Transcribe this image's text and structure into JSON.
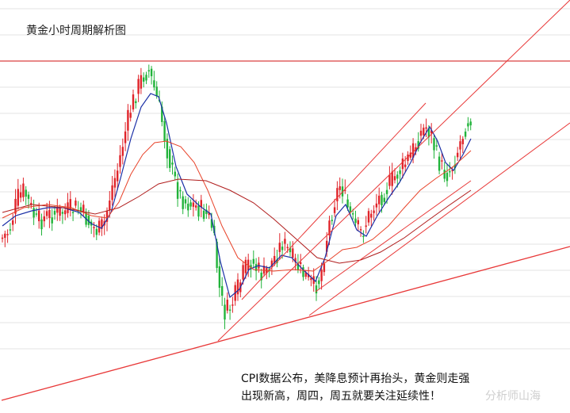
{
  "chart_data": {
    "type": "candlestick",
    "title": "黄金小时周期解析图",
    "caption_line1": "CPI数据公布，美降息预计再抬头，黄金则走强",
    "caption_line2": "出现新高，周四，周五就要关注延续性！",
    "watermark": "分析师山海",
    "grid": true,
    "colors": {
      "up": "#e0242a",
      "down": "#21b33a",
      "ma_fast": "#1a2fa6",
      "ma_mid": "#e8432a",
      "ma_slow": "#b01c1c",
      "trendline": "#e83838",
      "grid": "#e3e3e3",
      "resistance": "#d94040"
    }
  }
}
